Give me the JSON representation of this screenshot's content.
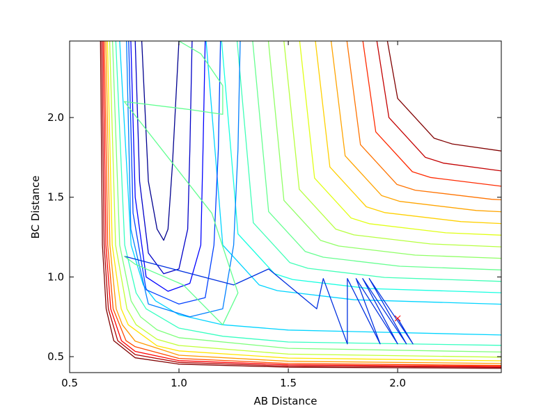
{
  "chart_data": {
    "type": "contour",
    "xlabel": "AB Distance",
    "ylabel": "BC Distance",
    "xlim": [
      0.5,
      2.474
    ],
    "ylim": [
      0.4,
      2.48
    ],
    "xticks": [
      0.5,
      {
        "value": 1,
        "label": "1.0"
      },
      1.5,
      {
        "value": 2,
        "label": "2.0"
      }
    ],
    "yticks": [
      0.5,
      {
        "value": 1,
        "label": "1.0"
      },
      1.5,
      {
        "value": 2,
        "label": "2.0"
      }
    ],
    "contours": [
      {
        "color": "#800000",
        "x": [
          0.641,
          0.65,
          0.667,
          0.702,
          0.8,
          1.0,
          1.5,
          2.474
        ],
        "y": [
          2.48,
          1.2,
          0.8,
          0.6,
          0.493,
          0.453,
          0.434,
          0.427
        ]
      },
      {
        "color": "#b20000",
        "x": [
          0.647,
          0.658,
          0.677,
          0.72,
          0.8,
          1.0,
          1.5,
          2.474
        ],
        "y": [
          2.48,
          1.2,
          0.8,
          0.6,
          0.513,
          0.464,
          0.441,
          0.433
        ]
      },
      {
        "color": "#ff0000",
        "x": [
          0.653,
          0.666,
          0.688,
          0.737,
          0.8,
          1.0,
          1.5,
          2.474
        ],
        "y": [
          2.48,
          1.2,
          0.8,
          0.6,
          0.533,
          0.475,
          0.449,
          0.439
        ]
      },
      {
        "color": "#ff4a00",
        "x": [
          0.659,
          0.674,
          0.699,
          0.758,
          0.8,
          1.0,
          1.5,
          2.474
        ],
        "y": [
          2.48,
          1.2,
          0.8,
          0.6,
          0.562,
          0.489,
          0.457,
          0.445
        ]
      },
      {
        "color": "#ff9800",
        "x": [
          0.666,
          0.684,
          0.713,
          0.741,
          0.8,
          1.0,
          1.5,
          2.474
        ],
        "y": [
          2.48,
          1.2,
          0.8,
          0.7,
          0.597,
          0.509,
          0.471,
          0.457
        ]
      },
      {
        "color": "#ffe600",
        "x": [
          0.673,
          0.695,
          0.736,
          0.768,
          0.9,
          1.0,
          1.5,
          2.474
        ],
        "y": [
          2.48,
          1.2,
          0.8,
          0.7,
          0.568,
          0.536,
          0.491,
          0.474
        ]
      },
      {
        "color": "#c1ff36",
        "x": [
          0.683,
          0.71,
          0.762,
          0.804,
          0.9,
          1.0,
          1.5,
          2.474
        ],
        "y": [
          2.48,
          1.2,
          0.8,
          0.7,
          0.609,
          0.57,
          0.516,
          0.497
        ]
      },
      {
        "color": "#7dff7a",
        "x": [
          0.696,
          0.729,
          0.781,
          0.824,
          0.9,
          1.0,
          1.5,
          2.474
        ],
        "y": [
          2.48,
          1.2,
          0.85,
          0.75,
          0.668,
          0.619,
          0.552,
          0.529
        ]
      },
      {
        "color": "#36ffc1",
        "x": [
          0.711,
          0.752,
          0.804,
          0.85,
          1.0,
          1.2,
          1.5,
          2.474
        ],
        "y": [
          2.48,
          1.2,
          0.9,
          0.8,
          0.679,
          0.628,
          0.592,
          0.571
        ]
      },
      {
        "color": "#00d4ff",
        "x": [
          0.729,
          0.781,
          0.837,
          0.893,
          1.0,
          1.2,
          1.5,
          2.474
        ],
        "y": [
          2.48,
          1.2,
          0.95,
          0.85,
          0.763,
          0.7,
          0.667,
          0.636
        ]
      },
      {
        "color": "#00d4ff",
        "x": [
          1.124,
          1.2,
          1.367,
          1.45,
          1.8,
          2.474
        ],
        "y": [
          2.48,
          1.2,
          0.95,
          0.914,
          0.857,
          0.829
        ]
      },
      {
        "color": "#16ffe1",
        "x": [
          1.195,
          1.27,
          1.437,
          1.52,
          1.87,
          2.474
        ],
        "y": [
          2.48,
          1.27,
          1.02,
          0.984,
          0.927,
          0.901
        ]
      },
      {
        "color": "#40ffb7",
        "x": [
          1.266,
          1.34,
          1.507,
          1.59,
          1.94,
          2.474
        ],
        "y": [
          2.48,
          1.34,
          1.09,
          1.054,
          0.997,
          0.972
        ]
      },
      {
        "color": "#66ff90",
        "x": [
          1.337,
          1.41,
          1.577,
          1.66,
          2.01,
          2.474
        ],
        "y": [
          2.48,
          1.41,
          1.16,
          1.124,
          1.067,
          1.044
        ]
      },
      {
        "color": "#90ff66",
        "x": [
          1.409,
          1.48,
          1.647,
          1.73,
          2.08,
          2.474
        ],
        "y": [
          2.48,
          1.48,
          1.23,
          1.194,
          1.137,
          1.117
        ]
      },
      {
        "color": "#b7ff40",
        "x": [
          1.48,
          1.55,
          1.717,
          1.8,
          2.15,
          2.474
        ],
        "y": [
          2.48,
          1.55,
          1.3,
          1.264,
          1.207,
          1.189
        ]
      },
      {
        "color": "#e1ff16",
        "x": [
          1.552,
          1.62,
          1.787,
          1.87,
          2.22,
          2.474
        ],
        "y": [
          2.48,
          1.62,
          1.37,
          1.334,
          1.277,
          1.262
        ]
      },
      {
        "color": "#ffd000",
        "x": [
          1.624,
          1.69,
          1.857,
          1.94,
          2.29,
          2.474
        ],
        "y": [
          2.48,
          1.69,
          1.44,
          1.404,
          1.347,
          1.335
        ]
      },
      {
        "color": "#ffa400",
        "x": [
          1.696,
          1.76,
          1.927,
          2.01,
          2.36,
          2.474
        ],
        "y": [
          2.48,
          1.76,
          1.51,
          1.474,
          1.417,
          1.409
        ]
      },
      {
        "color": "#ff7300",
        "x": [
          1.768,
          1.83,
          1.997,
          2.08,
          2.43,
          2.474
        ],
        "y": [
          2.48,
          1.83,
          1.58,
          1.544,
          1.487,
          1.484
        ]
      },
      {
        "color": "#ff2a00",
        "x": [
          1.841,
          1.9,
          2.067,
          2.15,
          2.474
        ],
        "y": [
          2.48,
          1.91,
          1.66,
          1.624,
          1.569
        ]
      },
      {
        "color": "#c30000",
        "x": [
          1.905,
          1.96,
          2.127,
          2.21,
          2.474
        ],
        "y": [
          2.48,
          2.0,
          1.75,
          1.714,
          1.665
        ]
      },
      {
        "color": "#800000",
        "x": [
          1.953,
          2.0,
          2.167,
          2.25,
          2.474
        ],
        "y": [
          2.48,
          2.12,
          1.87,
          1.834,
          1.79
        ]
      },
      {
        "color": "#00008f",
        "x": [
          0.83,
          0.86,
          0.9,
          0.93,
          0.95,
          0.97,
          1.0
        ],
        "y": [
          2.48,
          1.6,
          1.3,
          1.23,
          1.3,
          1.7,
          2.48
        ]
      },
      {
        "color": "#0000c8",
        "x": [
          0.8,
          0.82,
          0.86,
          0.93,
          1.0,
          1.04,
          1.05,
          1.06
        ],
        "y": [
          2.48,
          1.6,
          1.15,
          1.02,
          1.05,
          1.3,
          1.8,
          2.48
        ]
      },
      {
        "color": "#0000ff",
        "x": [
          0.78,
          0.8,
          0.85,
          0.95,
          1.05,
          1.1,
          1.11,
          1.12
        ],
        "y": [
          2.48,
          1.5,
          1.0,
          0.91,
          0.96,
          1.2,
          1.8,
          2.48
        ]
      },
      {
        "color": "#0040ff",
        "x": [
          0.77,
          0.79,
          0.85,
          1.0,
          1.12,
          1.16,
          1.18,
          1.19
        ],
        "y": [
          2.48,
          1.4,
          0.92,
          0.83,
          0.87,
          1.2,
          1.8,
          2.48
        ]
      },
      {
        "color": "#0080ff",
        "x": [
          0.76,
          0.78,
          0.86,
          1.05,
          1.2,
          1.25,
          1.27,
          1.28
        ],
        "y": [
          2.48,
          1.3,
          0.83,
          0.75,
          0.8,
          1.2,
          1.8,
          2.48
        ]
      }
    ],
    "trajectory": [
      {
        "color": "#0030e0",
        "x": [
          2.0,
          2.07,
          1.87,
          2.04,
          1.84,
          2.0,
          1.81,
          1.92,
          1.77,
          1.77,
          1.66,
          1.63,
          1.41,
          1.25,
          0.75
        ],
        "y": [
          0.74,
          0.58,
          0.99,
          0.58,
          0.99,
          0.58,
          0.99,
          0.58,
          0.99,
          0.58,
          0.99,
          0.8,
          1.05,
          0.95,
          1.13
        ]
      },
      {
        "color": "#60ff90",
        "x": [
          0.75,
          0.8,
          1.02,
          1.2,
          1.27,
          1.15,
          0.75,
          1.05,
          1.2,
          1.2,
          1.1,
          1.0
        ],
        "y": [
          1.13,
          1.08,
          0.95,
          0.7,
          0.9,
          1.4,
          2.1,
          2.05,
          2.02,
          2.2,
          2.4,
          2.48
        ]
      }
    ],
    "start_color": "#ff0000"
  }
}
